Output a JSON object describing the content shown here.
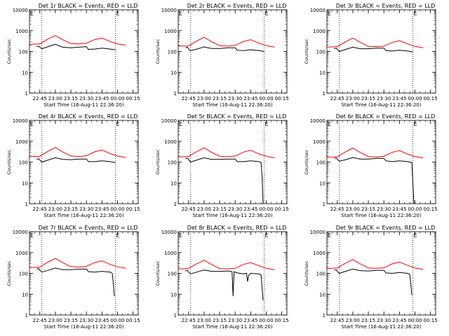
{
  "chart_data": {
    "type": "line",
    "layout": "3x3 grid of time series panels",
    "y_scale": "log",
    "ylim": [
      1,
      10000
    ],
    "y_tick_labels": [
      "1",
      "10",
      "100",
      "1000",
      "10000"
    ],
    "ylabel": "Counts/sec",
    "xlabel": "Start Time (16-Aug-11 22:36:20)",
    "x_tick_labels": [
      "22:45",
      "23:00",
      "23:15",
      "23:30",
      "23:45",
      "00:00",
      "00:15"
    ],
    "xlim_minutes": [
      -10,
      95
    ],
    "x_tick_minutes": [
      0,
      15,
      30,
      45,
      60,
      75,
      90
    ],
    "dotted_verticals_minutes": [
      2,
      73
    ],
    "corner_markers": [
      "E",
      "E"
    ],
    "grid": false,
    "colors": {
      "events": "#000000",
      "lld": "#ff0000",
      "axes": "#000000"
    },
    "panels": [
      {
        "title": "Det 1r BLACK = Events, RED = LLD",
        "series": [
          {
            "name": "RED = LLD",
            "color": "#ff0000",
            "x": [
              -10,
              0,
              8,
              15,
              22,
              30,
              38,
              45,
              53,
              60,
              68,
              75,
              83
            ],
            "y": [
              220,
              230,
              400,
              580,
              370,
              240,
              230,
              250,
              370,
              440,
              300,
              230,
              200
            ]
          },
          {
            "name": "BLACK = Events",
            "color": "#000000",
            "x": [
              -3,
              -1,
              0,
              2,
              8,
              15,
              22,
              30,
              38,
              45,
              47,
              53,
              60,
              68,
              73
            ],
            "y": [
              170,
              180,
              160,
              135,
              170,
              220,
              160,
              150,
              160,
              170,
              125,
              130,
              145,
              130,
              120
            ]
          }
        ]
      },
      {
        "title": "Det 2r BLACK = Events, RED = LLD",
        "series": [
          {
            "name": "RED = LLD",
            "color": "#ff0000",
            "x": [
              -10,
              0,
              8,
              15,
              22,
              30,
              38,
              45,
              53,
              60,
              68,
              75,
              83
            ],
            "y": [
              180,
              185,
              320,
              480,
              300,
              190,
              180,
              195,
              300,
              370,
              250,
              190,
              160
            ]
          },
          {
            "name": "BLACK = Events",
            "color": "#000000",
            "x": [
              -3,
              -1,
              0,
              2,
              8,
              15,
              22,
              30,
              38,
              45,
              47,
              53,
              60,
              68,
              73
            ],
            "y": [
              150,
              160,
              130,
              110,
              130,
              165,
              140,
              140,
              150,
              150,
              115,
              110,
              120,
              110,
              100
            ]
          }
        ]
      },
      {
        "title": "Det 3r BLACK = Events, RED = LLD",
        "series": [
          {
            "name": "RED = LLD",
            "color": "#ff0000",
            "x": [
              -10,
              0,
              8,
              15,
              22,
              30,
              38,
              45,
              53,
              60,
              68,
              75,
              83
            ],
            "y": [
              160,
              170,
              290,
              440,
              280,
              175,
              170,
              180,
              270,
              330,
              230,
              175,
              150
            ]
          },
          {
            "name": "BLACK = Events",
            "color": "#000000",
            "x": [
              -3,
              -1,
              0,
              2,
              8,
              15,
              22,
              30,
              38,
              45,
              47,
              53,
              60,
              68,
              73
            ],
            "y": [
              135,
              145,
              125,
              100,
              125,
              160,
              135,
              135,
              145,
              145,
              110,
              105,
              115,
              105,
              95
            ]
          }
        ]
      },
      {
        "title": "Det 4r BLACK = Events, RED = LLD",
        "series": [
          {
            "name": "RED = LLD",
            "color": "#ff0000",
            "x": [
              -10,
              0,
              8,
              15,
              22,
              30,
              38,
              45,
              53,
              60,
              68,
              75,
              83
            ],
            "y": [
              180,
              190,
              330,
              500,
              310,
              195,
              185,
              200,
              310,
              380,
              255,
              195,
              165
            ]
          },
          {
            "name": "BLACK = Events",
            "color": "#000000",
            "x": [
              -3,
              -1,
              0,
              2,
              8,
              15,
              22,
              30,
              38,
              45,
              47,
              53,
              60,
              68,
              73
            ],
            "y": [
              135,
              145,
              125,
              100,
              125,
              160,
              135,
              130,
              140,
              140,
              105,
              105,
              115,
              105,
              95
            ]
          }
        ]
      },
      {
        "title": "Det 5r BLACK = Events, RED = LLD",
        "series": [
          {
            "name": "RED = LLD",
            "color": "#ff0000",
            "x": [
              -10,
              0,
              8,
              15,
              22,
              30,
              38,
              45,
              53,
              60,
              68,
              75,
              83
            ],
            "y": [
              175,
              185,
              320,
              480,
              300,
              190,
              180,
              195,
              300,
              370,
              245,
              190,
              160
            ]
          },
          {
            "name": "BLACK = Events",
            "color": "#000000",
            "x": [
              -3,
              -1,
              0,
              2,
              8,
              15,
              22,
              30,
              38,
              45,
              47,
              53,
              60,
              68,
              70,
              71,
              72
            ],
            "y": [
              145,
              155,
              130,
              100,
              125,
              160,
              135,
              135,
              140,
              140,
              105,
              105,
              115,
              105,
              95,
              20,
              1
            ]
          }
        ]
      },
      {
        "title": "Det 6r BLACK = Events, RED = LLD",
        "series": [
          {
            "name": "RED = LLD",
            "color": "#ff0000",
            "x": [
              -10,
              0,
              8,
              15,
              22,
              30,
              38,
              45,
              53,
              60,
              68,
              75,
              83
            ],
            "y": [
              170,
              180,
              310,
              470,
              290,
              185,
              175,
              190,
              290,
              360,
              240,
              185,
              155
            ]
          },
          {
            "name": "BLACK = Events",
            "color": "#000000",
            "x": [
              -3,
              -1,
              0,
              2,
              8,
              15,
              22,
              30,
              38,
              45,
              47,
              53,
              60,
              68,
              72,
              73,
              74
            ],
            "y": [
              150,
              160,
              135,
              110,
              130,
              165,
              140,
              140,
              150,
              150,
              115,
              105,
              115,
              105,
              95,
              10,
              1
            ]
          }
        ]
      },
      {
        "title": "Det 7r BLACK = Events, RED = LLD",
        "series": [
          {
            "name": "RED = LLD",
            "color": "#ff0000",
            "x": [
              -10,
              0,
              8,
              15,
              22,
              30,
              38,
              45,
              53,
              60,
              68,
              75,
              83
            ],
            "y": [
              190,
              200,
              350,
              520,
              330,
              210,
              200,
              215,
              330,
              400,
              270,
              205,
              175
            ]
          },
          {
            "name": "BLACK = Events",
            "color": "#000000",
            "x": [
              -3,
              -1,
              0,
              2,
              8,
              15,
              22,
              30,
              38,
              45,
              47,
              53,
              60,
              68,
              70,
              71,
              72
            ],
            "y": [
              160,
              170,
              140,
              115,
              140,
              180,
              150,
              150,
              160,
              160,
              120,
              115,
              125,
              115,
              100,
              30,
              8
            ]
          }
        ]
      },
      {
        "title": "Det 8r BLACK = Events, RED = LLD",
        "series": [
          {
            "name": "RED = LLD",
            "color": "#ff0000",
            "x": [
              -10,
              0,
              8,
              15,
              22,
              30,
              38,
              45,
              53,
              60,
              68,
              75,
              83
            ],
            "y": [
              160,
              170,
              290,
              430,
              270,
              170,
              165,
              175,
              270,
              330,
              230,
              175,
              150
            ]
          },
          {
            "name": "BLACK = Events",
            "color": "#000000",
            "x": [
              -3,
              -1,
              0,
              2,
              8,
              15,
              22,
              30,
              38,
              42,
              43,
              44,
              47,
              53,
              56,
              57,
              58,
              60,
              68,
              70,
              71,
              72
            ],
            "y": [
              130,
              140,
              115,
              95,
              115,
              145,
              125,
              125,
              130,
              120,
              8,
              120,
              105,
              95,
              100,
              40,
              80,
              100,
              95,
              85,
              20,
              5
            ]
          }
        ]
      },
      {
        "title": "Det 9r BLACK = Events, RED = LLD",
        "series": [
          {
            "name": "RED = LLD",
            "color": "#ff0000",
            "x": [
              -10,
              0,
              8,
              15,
              22,
              30,
              38,
              45,
              53,
              60,
              68,
              75,
              83
            ],
            "y": [
              170,
              180,
              310,
              460,
              290,
              180,
              175,
              185,
              285,
              350,
              240,
              180,
              155
            ]
          },
          {
            "name": "BLACK = Events",
            "color": "#000000",
            "x": [
              -3,
              -1,
              0,
              2,
              8,
              15,
              22,
              30,
              38,
              45,
              47,
              53,
              60,
              68,
              70,
              71,
              72
            ],
            "y": [
              140,
              150,
              125,
              100,
              125,
              160,
              135,
              130,
              140,
              140,
              105,
              100,
              110,
              100,
              90,
              30,
              9
            ]
          }
        ]
      }
    ]
  }
}
